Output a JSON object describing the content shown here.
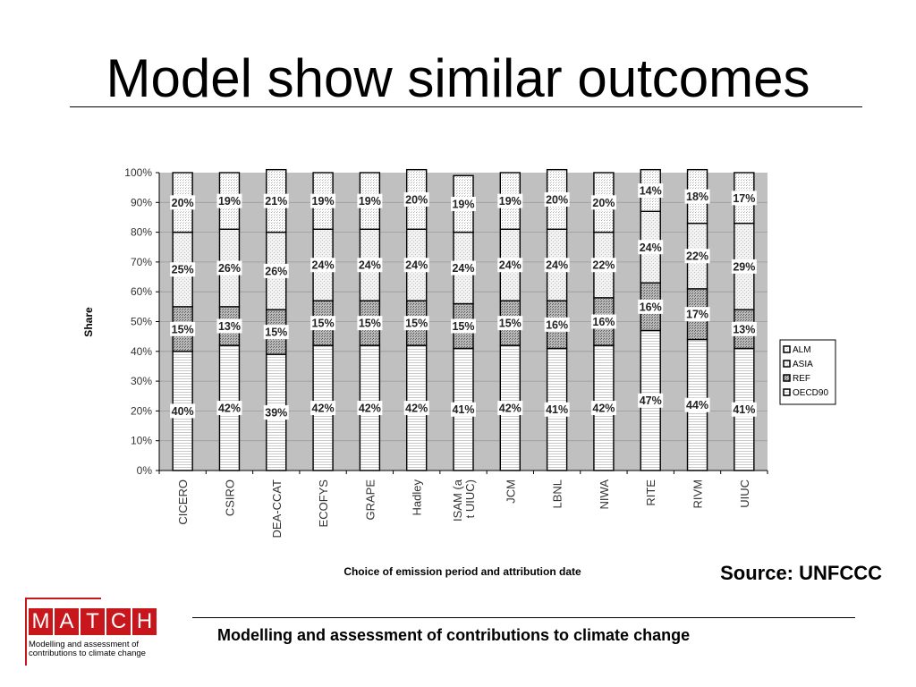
{
  "slide": {
    "title": "Model show similar outcomes",
    "source": "Source: UNFCCC",
    "footer": "Modelling and assessment of contributions to climate change"
  },
  "logo": {
    "letters": [
      "M",
      "A",
      "T",
      "C",
      "H"
    ],
    "line1": "Modelling and assessment of",
    "line2": "contributions to climate change",
    "color": "#c8161d"
  },
  "chart_data": {
    "type": "bar",
    "stacked": true,
    "ylabel": "Share",
    "xlabel": "Choice of emission period and attribution date",
    "ylim": [
      0,
      100
    ],
    "yticks": [
      "0%",
      "10%",
      "20%",
      "30%",
      "40%",
      "50%",
      "60%",
      "70%",
      "80%",
      "90%",
      "100%"
    ],
    "grid": true,
    "legend_position": "right",
    "categories": [
      "CICERO",
      "CSIRO",
      "DEA-CCAT",
      "ECOFYS",
      "GRAPE",
      "Hadley",
      "ISAM (at UIUC)",
      "JCM",
      "LBNL",
      "NIWA",
      "RITE",
      "RIVM",
      "UIUC"
    ],
    "series": [
      {
        "name": "OECD90",
        "values": [
          40,
          42,
          39,
          42,
          42,
          42,
          41,
          42,
          41,
          42,
          47,
          44,
          41
        ]
      },
      {
        "name": "REF",
        "values": [
          15,
          13,
          15,
          15,
          15,
          15,
          15,
          15,
          16,
          16,
          16,
          17,
          13
        ]
      },
      {
        "name": "ASIA",
        "values": [
          25,
          26,
          26,
          24,
          24,
          24,
          24,
          24,
          24,
          22,
          24,
          22,
          29
        ]
      },
      {
        "name": "ALM",
        "values": [
          20,
          19,
          21,
          19,
          19,
          20,
          19,
          19,
          20,
          20,
          14,
          18,
          17
        ]
      }
    ],
    "legend_order": [
      "ALM",
      "ASIA",
      "REF",
      "OECD90"
    ]
  }
}
